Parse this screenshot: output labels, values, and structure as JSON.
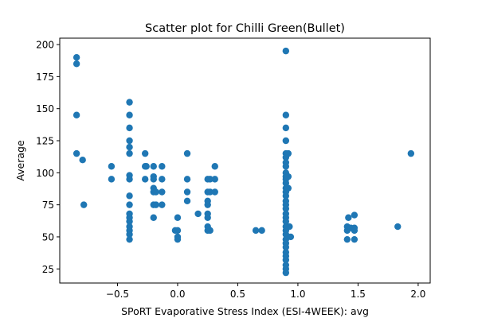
{
  "chart_data": {
    "type": "scatter",
    "title": "Scatter plot for Chilli Green(Bullet)",
    "xlabel": "SPoRT Evaporative Stress Index (ESI-4WEEK): avg",
    "ylabel": "Average",
    "xlim": [
      -0.98,
      2.1
    ],
    "ylim": [
      14,
      205
    ],
    "xticks": [
      -0.5,
      0.0,
      0.5,
      1.0,
      1.5,
      2.0
    ],
    "xtick_labels": [
      "−0.5",
      "0.0",
      "0.5",
      "1.0",
      "1.5",
      "2.0"
    ],
    "yticks": [
      25,
      50,
      75,
      100,
      125,
      150,
      175,
      200
    ],
    "ytick_labels": [
      "25",
      "50",
      "75",
      "100",
      "125",
      "150",
      "175",
      "200"
    ],
    "grid": false,
    "marker_color": "#1f77b4",
    "series": [
      {
        "points": [
          [
            -0.84,
            190
          ],
          [
            -0.84,
            185
          ],
          [
            -0.84,
            145
          ],
          [
            -0.84,
            115
          ],
          [
            -0.79,
            110
          ],
          [
            -0.78,
            75
          ],
          [
            -0.55,
            105
          ],
          [
            -0.55,
            95
          ],
          [
            -0.4,
            155
          ],
          [
            -0.4,
            145
          ],
          [
            -0.4,
            135
          ],
          [
            -0.4,
            125
          ],
          [
            -0.4,
            120
          ],
          [
            -0.4,
            115
          ],
          [
            -0.4,
            98
          ],
          [
            -0.4,
            95
          ],
          [
            -0.4,
            82
          ],
          [
            -0.4,
            75
          ],
          [
            -0.4,
            68
          ],
          [
            -0.4,
            65
          ],
          [
            -0.4,
            62
          ],
          [
            -0.4,
            58
          ],
          [
            -0.4,
            55
          ],
          [
            -0.4,
            52
          ],
          [
            -0.4,
            48
          ],
          [
            -0.27,
            115
          ],
          [
            -0.27,
            105
          ],
          [
            -0.27,
            95
          ],
          [
            -0.26,
            105
          ],
          [
            -0.2,
            105
          ],
          [
            -0.2,
            97
          ],
          [
            -0.2,
            95
          ],
          [
            -0.2,
            88
          ],
          [
            -0.2,
            85
          ],
          [
            -0.2,
            75
          ],
          [
            -0.2,
            65
          ],
          [
            -0.18,
            85
          ],
          [
            -0.18,
            75
          ],
          [
            -0.13,
            105
          ],
          [
            -0.13,
            95
          ],
          [
            -0.13,
            85
          ],
          [
            -0.13,
            75
          ],
          [
            -0.02,
            55
          ],
          [
            0.0,
            65
          ],
          [
            0.0,
            55
          ],
          [
            0.0,
            50
          ],
          [
            0.0,
            48
          ],
          [
            0.08,
            115
          ],
          [
            0.08,
            95
          ],
          [
            0.08,
            85
          ],
          [
            0.08,
            78
          ],
          [
            0.17,
            68
          ],
          [
            0.25,
            95
          ],
          [
            0.25,
            85
          ],
          [
            0.25,
            78
          ],
          [
            0.25,
            75
          ],
          [
            0.25,
            68
          ],
          [
            0.25,
            65
          ],
          [
            0.25,
            58
          ],
          [
            0.25,
            55
          ],
          [
            0.27,
            95
          ],
          [
            0.27,
            85
          ],
          [
            0.27,
            55
          ],
          [
            0.31,
            105
          ],
          [
            0.31,
            95
          ],
          [
            0.31,
            85
          ],
          [
            0.65,
            55
          ],
          [
            0.7,
            55
          ],
          [
            0.9,
            195
          ],
          [
            0.9,
            145
          ],
          [
            0.9,
            135
          ],
          [
            0.9,
            125
          ],
          [
            0.9,
            115
          ],
          [
            0.9,
            112
          ],
          [
            0.9,
            108
          ],
          [
            0.9,
            105
          ],
          [
            0.9,
            100
          ],
          [
            0.9,
            97
          ],
          [
            0.9,
            95
          ],
          [
            0.9,
            92
          ],
          [
            0.9,
            88
          ],
          [
            0.9,
            85
          ],
          [
            0.9,
            82
          ],
          [
            0.9,
            78
          ],
          [
            0.9,
            75
          ],
          [
            0.9,
            72
          ],
          [
            0.9,
            68
          ],
          [
            0.9,
            65
          ],
          [
            0.9,
            62
          ],
          [
            0.9,
            58
          ],
          [
            0.9,
            55
          ],
          [
            0.9,
            52
          ],
          [
            0.9,
            48
          ],
          [
            0.9,
            45
          ],
          [
            0.9,
            42
          ],
          [
            0.9,
            38
          ],
          [
            0.9,
            35
          ],
          [
            0.9,
            32
          ],
          [
            0.9,
            28
          ],
          [
            0.9,
            25
          ],
          [
            0.9,
            22
          ],
          [
            0.92,
            115
          ],
          [
            0.92,
            97
          ],
          [
            0.92,
            88
          ],
          [
            0.93,
            58
          ],
          [
            0.94,
            50
          ],
          [
            1.41,
            58
          ],
          [
            1.41,
            55
          ],
          [
            1.41,
            48
          ],
          [
            1.42,
            65
          ],
          [
            1.44,
            57
          ],
          [
            1.47,
            67
          ],
          [
            1.47,
            57
          ],
          [
            1.47,
            55
          ],
          [
            1.47,
            48
          ],
          [
            1.83,
            58
          ],
          [
            1.94,
            115
          ]
        ]
      }
    ]
  }
}
